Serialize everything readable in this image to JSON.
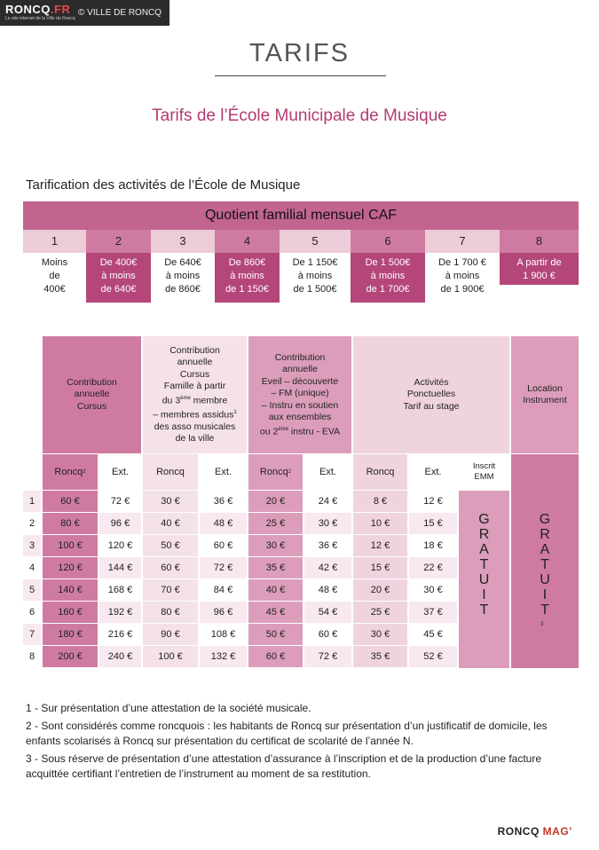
{
  "header": {
    "logo_main": "RONCQ",
    "logo_accent": ".FR",
    "logo_tagline": "Le site internet de la Ville de Roncq",
    "credit": "© VILLE DE RONCQ"
  },
  "page_title": "TARIFS",
  "subtitle": "Tarifs de l’École Municipale de Musique",
  "section_label": "Tarification des activités de l’École de Musique",
  "quotient": {
    "title": "Quotient familial mensuel CAF",
    "brackets": [
      {
        "num": "1",
        "line1": "Moins",
        "line2": "de",
        "line3": "400€"
      },
      {
        "num": "2",
        "line1": "De 400€",
        "line2": "à moins",
        "line3": "de 640€"
      },
      {
        "num": "3",
        "line1": "De 640€",
        "line2": "à moins",
        "line3": "de 860€"
      },
      {
        "num": "4",
        "line1": "De 860€",
        "line2": "à moins",
        "line3": "de 1 150€"
      },
      {
        "num": "5",
        "line1": "De 1 150€",
        "line2": "à moins",
        "line3": "de 1 500€"
      },
      {
        "num": "6",
        "line1": "De 1 500€",
        "line2": "à moins",
        "line3": "de 1 700€"
      },
      {
        "num": "7",
        "line1": "De 1 700 €",
        "line2": "à moins",
        "line3": "de 1 900€"
      },
      {
        "num": "8",
        "line1": "A partir de",
        "line2": "1 900 €",
        "line3": ""
      }
    ]
  },
  "groups": {
    "g1": {
      "l1": "Contribution",
      "l2": "annuelle",
      "l3": "Cursus"
    },
    "g2": {
      "l1": "Contribution",
      "l2": "annuelle",
      "l3": "Cursus",
      "l4": "Famille à partir",
      "l5a": "du 3",
      "l5sup": "ème",
      "l5b": " membre",
      "l6": "– membres assidus",
      "l6sup": "1",
      "l7": "des asso musicales",
      "l8": "de la ville"
    },
    "g3": {
      "l1": "Contribution",
      "l2": "annuelle",
      "l3": "Eveil – découverte",
      "l4": "– FM (unique)",
      "l5": "– Instru en soutien",
      "l6": "aux ensembles",
      "l7a": "ou 2",
      "l7sup": "ème",
      "l7b": " instru - EVA"
    },
    "g4": {
      "l1": "Activités",
      "l2": "Ponctuelles",
      "l3": "Tarif au stage"
    },
    "g5": {
      "l1": "Location",
      "l2": "Instrument"
    }
  },
  "subheaders": {
    "roncq": "Roncq",
    "roncq_sup": "2",
    "ext": "Ext.",
    "inscrit1": "Inscrit",
    "inscrit2": "EMM"
  },
  "rows": [
    {
      "n": "1",
      "v": [
        "60 €",
        "72 €",
        "30 €",
        "36 €",
        "20 €",
        "24 €",
        "8 €",
        "12 €"
      ]
    },
    {
      "n": "2",
      "v": [
        "80 €",
        "96 €",
        "40 €",
        "48 €",
        "25 €",
        "30 €",
        "10 €",
        "15 €"
      ]
    },
    {
      "n": "3",
      "v": [
        "100 €",
        "120 €",
        "50 €",
        "60 €",
        "30 €",
        "36 €",
        "12 €",
        "18 €"
      ]
    },
    {
      "n": "4",
      "v": [
        "120 €",
        "144 €",
        "60 €",
        "72 €",
        "35 €",
        "42 €",
        "15 €",
        "22 €"
      ]
    },
    {
      "n": "5",
      "v": [
        "140 €",
        "168 €",
        "70 €",
        "84 €",
        "40 €",
        "48 €",
        "20 €",
        "30 €"
      ]
    },
    {
      "n": "6",
      "v": [
        "160 €",
        "192 €",
        "80 €",
        "96 €",
        "45 €",
        "54 €",
        "25 €",
        "37 €"
      ]
    },
    {
      "n": "7",
      "v": [
        "180 €",
        "216 €",
        "90 €",
        "108 €",
        "50 €",
        "60 €",
        "30 €",
        "45 €"
      ]
    },
    {
      "n": "8",
      "v": [
        "200 €",
        "240 €",
        "100 €",
        "132 €",
        "60 €",
        "72 €",
        "35 €",
        "52 €"
      ]
    }
  ],
  "gratuit": {
    "letters": [
      "G",
      "R",
      "A",
      "T",
      "U",
      "I",
      "T"
    ],
    "sup": "3"
  },
  "notes": [
    "1 - Sur présentation d’une attestation de la société musicale.",
    "2 - Sont considérés comme roncquois : les habitants de Roncq sur présentation d’un justificatif de domicile, les enfants scolarisés à Roncq sur présentation du certificat de scolarité de l’année N.",
    "3 - Sous réserve de présentation d’une attestation d’assurance à l’inscription et de la production d’une facture acquittée certifiant l’entretien de l’instrument au moment de sa restitution."
  ],
  "brand": {
    "main": "RONCQ",
    "mag": "MAG",
    "mark": "’"
  },
  "colors": {
    "dark": "#b4467a",
    "mid": "#cf7ba1",
    "light": "#ecccd9",
    "pale": "#f5e1ea",
    "title": "#b23a73"
  }
}
